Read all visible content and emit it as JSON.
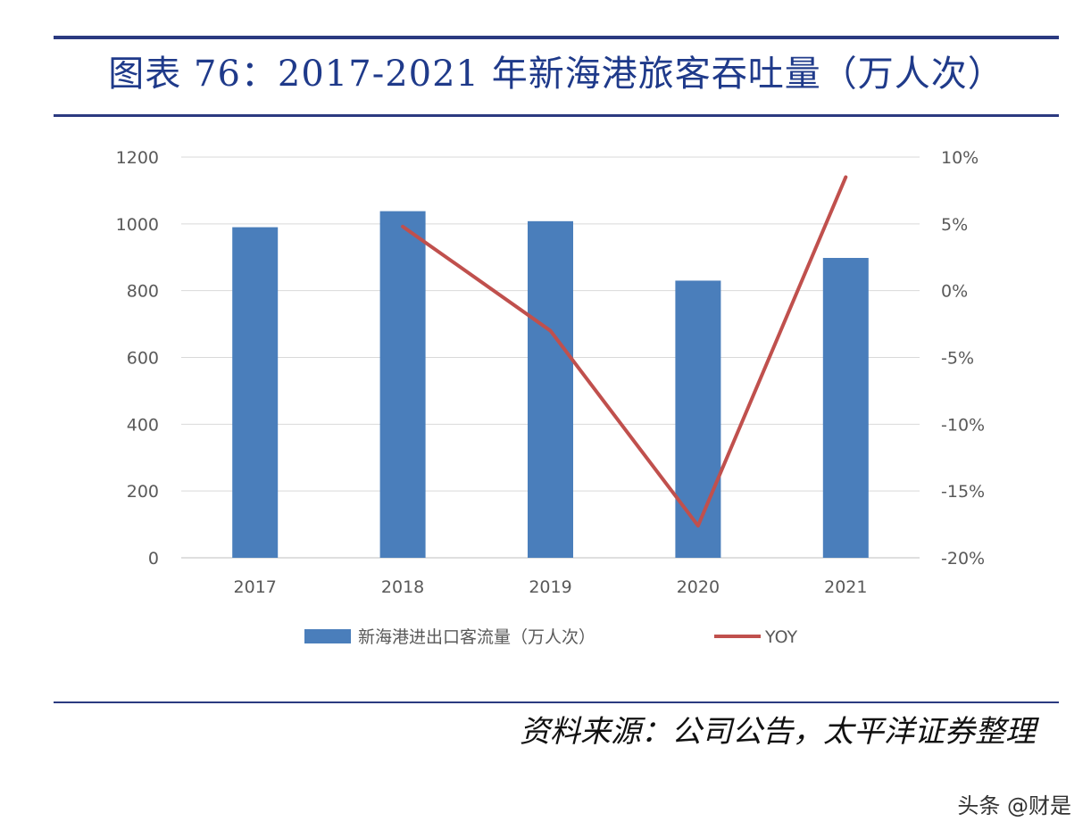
{
  "header": {
    "title": "图表 76：2017-2021 年新海港旅客吞吐量（万人次）"
  },
  "footer": {
    "source": "资料来源：公司公告，太平洋证券整理",
    "watermark": "头条 @财是"
  },
  "colors": {
    "bar": "#4a7ebb",
    "line": "#c0504d",
    "rule": "#2b3a80",
    "title": "#1f3a8a",
    "grid": "#d9d9d9"
  },
  "chart_data": {
    "type": "bar",
    "title": "图表 76：2017-2021 年新海港旅客吞吐量（万人次）",
    "categories": [
      "2017",
      "2018",
      "2019",
      "2020",
      "2021"
    ],
    "series": [
      {
        "name": "新海港进出口客流量（万人次）",
        "type": "bar",
        "axis": "left",
        "values": [
          990,
          1038,
          1008,
          830,
          898
        ]
      },
      {
        "name": "YOY",
        "type": "line",
        "axis": "right",
        "values": [
          null,
          0.048,
          -0.03,
          -0.176,
          0.085
        ]
      }
    ],
    "y_left": {
      "ylim": [
        0,
        1200
      ],
      "ticks": [
        0,
        200,
        400,
        600,
        800,
        1000,
        1200
      ],
      "tick_labels": [
        "0",
        "200",
        "400",
        "600",
        "800",
        "1000",
        "1200"
      ]
    },
    "y_right": {
      "ylim": [
        -0.2,
        0.1
      ],
      "ticks": [
        -0.2,
        -0.15,
        -0.1,
        -0.05,
        0,
        0.05,
        0.1
      ],
      "tick_labels": [
        "-20%",
        "-15%",
        "-10%",
        "-5%",
        "0%",
        "5%",
        "10%"
      ]
    },
    "grid": true,
    "legend": "bottom"
  }
}
